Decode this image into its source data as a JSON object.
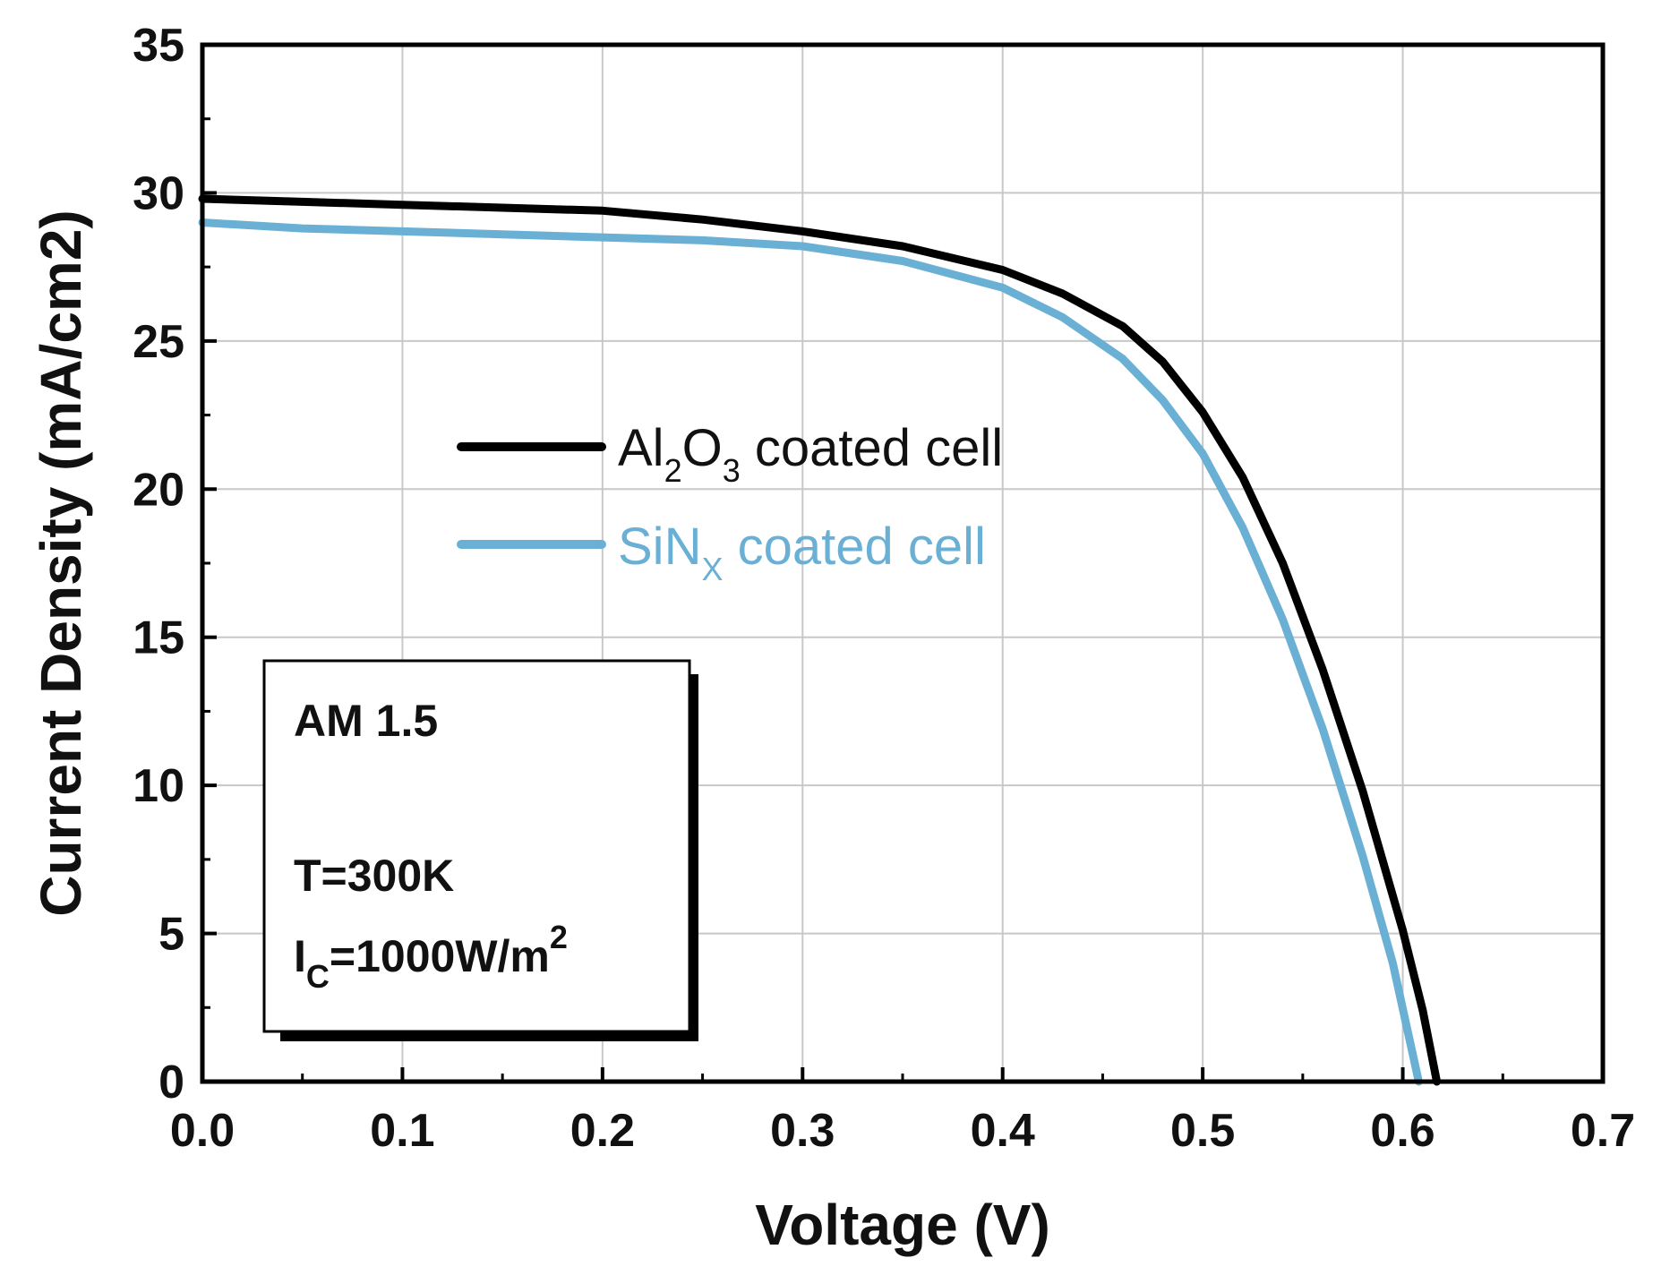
{
  "chart_data": {
    "type": "line",
    "xlabel": "Voltage (V)",
    "ylabel": "Current Density (mA/cm2)",
    "xlim": [
      0.0,
      0.7
    ],
    "ylim": [
      0,
      35
    ],
    "x_ticks": [
      "0.0",
      "0.1",
      "0.2",
      "0.3",
      "0.4",
      "0.5",
      "0.6",
      "0.7"
    ],
    "y_ticks": [
      "0",
      "5",
      "10",
      "15",
      "20",
      "25",
      "30",
      "35"
    ],
    "grid": true,
    "legend_position": "center-left",
    "series": [
      {
        "name_parts": [
          "Al",
          "2",
          "O",
          "3",
          " coated cell"
        ],
        "color": "#000000",
        "x": [
          0.0,
          0.05,
          0.1,
          0.15,
          0.2,
          0.25,
          0.3,
          0.35,
          0.4,
          0.43,
          0.46,
          0.48,
          0.5,
          0.52,
          0.54,
          0.56,
          0.58,
          0.6,
          0.61,
          0.617
        ],
        "y": [
          29.8,
          29.7,
          29.6,
          29.5,
          29.4,
          29.1,
          28.7,
          28.2,
          27.4,
          26.6,
          25.5,
          24.3,
          22.6,
          20.4,
          17.5,
          13.9,
          9.8,
          5.1,
          2.4,
          0.0
        ]
      },
      {
        "name_parts": [
          "SiN",
          "X",
          " coated cell"
        ],
        "color": "#6ab0d4",
        "x": [
          0.0,
          0.05,
          0.1,
          0.15,
          0.2,
          0.25,
          0.3,
          0.35,
          0.4,
          0.43,
          0.46,
          0.48,
          0.5,
          0.52,
          0.54,
          0.56,
          0.58,
          0.595,
          0.608
        ],
        "y": [
          29.0,
          28.8,
          28.7,
          28.6,
          28.5,
          28.4,
          28.2,
          27.7,
          26.8,
          25.8,
          24.4,
          23.0,
          21.2,
          18.7,
          15.6,
          11.9,
          7.6,
          4.0,
          0.0
        ]
      }
    ],
    "annotation": {
      "line1": "AM 1.5",
      "line2": "T=300K",
      "line3_parts": [
        "I",
        "C",
        "=1000W/m",
        "2"
      ]
    }
  }
}
